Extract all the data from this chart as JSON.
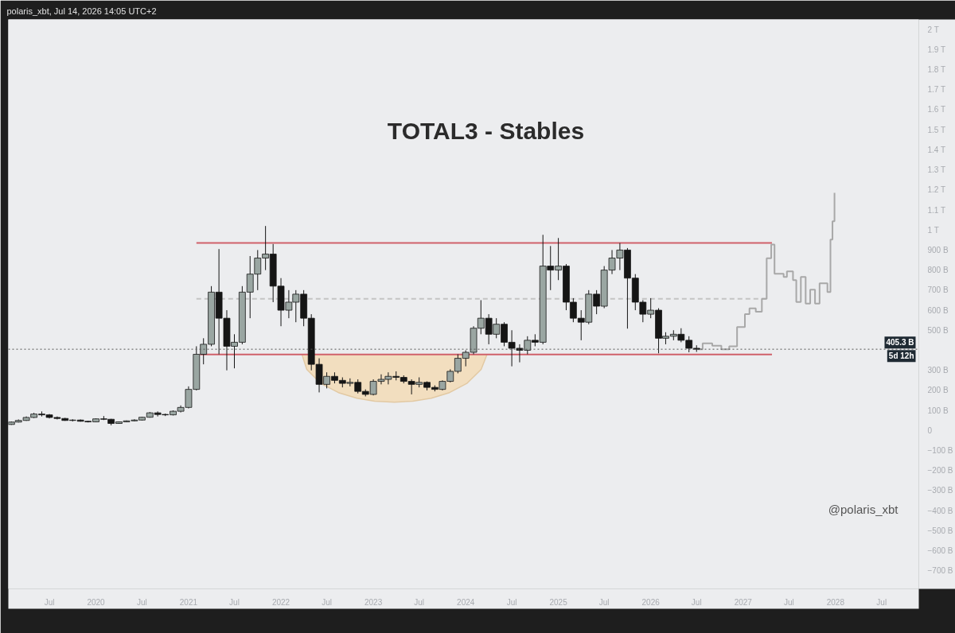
{
  "chart_data": {
    "type": "candlestick",
    "title": "TOTAL3 - Stables",
    "subtitle": "polaris_xbt, Jul 14, 2026 14:05 UTC+2",
    "annotations": [
      "@polaris_xbt",
      {
        "text": "5d 12h",
        "x": "2028-11-25",
        "y": 405300000000.0
      }
    ],
    "x": [
      "2019-02",
      "2019-03",
      "2019-04",
      "2019-05",
      "2019-06",
      "2019-07",
      "2019-08",
      "2019-09",
      "2019-10",
      "2019-11",
      "2019-12",
      "2020-01",
      "2020-02",
      "2020-03",
      "2020-04",
      "2020-05",
      "2020-06",
      "2020-07",
      "2020-08",
      "2020-09",
      "2020-10",
      "2020-11",
      "2020-12",
      "2021-01",
      "2021-02",
      "2021-03",
      "2021-04",
      "2021-05",
      "2021-06",
      "2021-07",
      "2021-08",
      "2021-09",
      "2021-10",
      "2021-11",
      "2021-12",
      "2022-01",
      "2022-02",
      "2022-03",
      "2022-04",
      "2022-05",
      "2022-06",
      "2022-07",
      "2022-08",
      "2022-09",
      "2022-10",
      "2022-11",
      "2022-12",
      "2023-01",
      "2023-02",
      "2023-03",
      "2023-04",
      "2023-05",
      "2023-06",
      "2023-07",
      "2023-08",
      "2023-09",
      "2023-10",
      "2023-11",
      "2023-12",
      "2024-01",
      "2024-02",
      "2024-03",
      "2024-04",
      "2024-05",
      "2024-06",
      "2024-07",
      "2024-08",
      "2024-09",
      "2024-10",
      "2024-11",
      "2024-12",
      "2025-01",
      "2025-02",
      "2025-03",
      "2025-04",
      "2025-05",
      "2025-06",
      "2025-07",
      "2025-08",
      "2025-09",
      "2025-10",
      "2025-11",
      "2025-12",
      "2026-01",
      "2026-02",
      "2026-03",
      "2026-04",
      "2026-05",
      "2026-06",
      "2026-07"
    ],
    "ohlc": [
      [
        30000000000.0,
        45000000000.0,
        28000000000.0,
        42000000000.0
      ],
      [
        42000000000.0,
        55000000000.0,
        40000000000.0,
        50000000000.0
      ],
      [
        50000000000.0,
        70000000000.0,
        48000000000.0,
        65000000000.0
      ],
      [
        65000000000.0,
        88000000000.0,
        62000000000.0,
        82000000000.0
      ],
      [
        82000000000.0,
        95000000000.0,
        70000000000.0,
        78000000000.0
      ],
      [
        78000000000.0,
        82000000000.0,
        60000000000.0,
        65000000000.0
      ],
      [
        65000000000.0,
        70000000000.0,
        55000000000.0,
        60000000000.0
      ],
      [
        60000000000.0,
        63000000000.0,
        48000000000.0,
        50000000000.0
      ],
      [
        50000000000.0,
        56000000000.0,
        45000000000.0,
        52000000000.0
      ],
      [
        52000000000.0,
        55000000000.0,
        44000000000.0,
        46000000000.0
      ],
      [
        46000000000.0,
        48000000000.0,
        40000000000.0,
        43000000000.0
      ],
      [
        43000000000.0,
        60000000000.0,
        42000000000.0,
        58000000000.0
      ],
      [
        58000000000.0,
        72000000000.0,
        52000000000.0,
        56000000000.0
      ],
      [
        56000000000.0,
        58000000000.0,
        26000000000.0,
        35000000000.0
      ],
      [
        35000000000.0,
        45000000000.0,
        33000000000.0,
        43000000000.0
      ],
      [
        43000000000.0,
        50000000000.0,
        41000000000.0,
        48000000000.0
      ],
      [
        48000000000.0,
        56000000000.0,
        46000000000.0,
        52000000000.0
      ],
      [
        52000000000.0,
        68000000000.0,
        50000000000.0,
        66000000000.0
      ],
      [
        66000000000.0,
        92000000000.0,
        64000000000.0,
        88000000000.0
      ],
      [
        88000000000.0,
        95000000000.0,
        70000000000.0,
        80000000000.0
      ],
      [
        80000000000.0,
        84000000000.0,
        72000000000.0,
        78000000000.0
      ],
      [
        78000000000.0,
        100000000000.0,
        75000000000.0,
        96000000000.0
      ],
      [
        96000000000.0,
        125000000000.0,
        90000000000.0,
        115000000000.0
      ],
      [
        115000000000.0,
        220000000000.0,
        110000000000.0,
        205000000000.0
      ],
      [
        205000000000.0,
        420000000000.0,
        200000000000.0,
        380000000000.0
      ],
      [
        380000000000.0,
        460000000000.0,
        330000000000.0,
        430000000000.0
      ],
      [
        430000000000.0,
        720000000000.0,
        420000000000.0,
        690000000000.0
      ],
      [
        690000000000.0,
        905000000000.0,
        380000000000.0,
        560000000000.0
      ],
      [
        560000000000.0,
        600000000000.0,
        300000000000.0,
        420000000000.0
      ],
      [
        420000000000.0,
        480000000000.0,
        310000000000.0,
        440000000000.0
      ],
      [
        440000000000.0,
        720000000000.0,
        430000000000.0,
        690000000000.0
      ],
      [
        690000000000.0,
        870000000000.0,
        560000000000.0,
        780000000000.0
      ],
      [
        780000000000.0,
        900000000000.0,
        700000000000.0,
        860000000000.0
      ],
      [
        860000000000.0,
        1020000000000.0,
        800000000000.0,
        880000000000.0
      ],
      [
        880000000000.0,
        930000000000.0,
        640000000000.0,
        720000000000.0
      ],
      [
        720000000000.0,
        760000000000.0,
        520000000000.0,
        600000000000.0
      ],
      [
        600000000000.0,
        700000000000.0,
        560000000000.0,
        640000000000.0
      ],
      [
        640000000000.0,
        700000000000.0,
        540000000000.0,
        680000000000.0
      ],
      [
        680000000000.0,
        700000000000.0,
        520000000000.0,
        560000000000.0
      ],
      [
        560000000000.0,
        580000000000.0,
        300000000000.0,
        330000000000.0
      ],
      [
        330000000000.0,
        360000000000.0,
        190000000000.0,
        230000000000.0
      ],
      [
        230000000000.0,
        290000000000.0,
        210000000000.0,
        270000000000.0
      ],
      [
        270000000000.0,
        290000000000.0,
        235000000000.0,
        250000000000.0
      ],
      [
        250000000000.0,
        265000000000.0,
        215000000000.0,
        235000000000.0
      ],
      [
        235000000000.0,
        260000000000.0,
        220000000000.0,
        240000000000.0
      ],
      [
        240000000000.0,
        255000000000.0,
        185000000000.0,
        195000000000.0
      ],
      [
        195000000000.0,
        205000000000.0,
        170000000000.0,
        180000000000.0
      ],
      [
        180000000000.0,
        255000000000.0,
        175000000000.0,
        245000000000.0
      ],
      [
        245000000000.0,
        280000000000.0,
        230000000000.0,
        255000000000.0
      ],
      [
        255000000000.0,
        290000000000.0,
        230000000000.0,
        270000000000.0
      ],
      [
        270000000000.0,
        295000000000.0,
        250000000000.0,
        265000000000.0
      ],
      [
        265000000000.0,
        275000000000.0,
        235000000000.0,
        245000000000.0
      ],
      [
        245000000000.0,
        255000000000.0,
        180000000000.0,
        230000000000.0
      ],
      [
        230000000000.0,
        265000000000.0,
        215000000000.0,
        240000000000.0
      ],
      [
        240000000000.0,
        245000000000.0,
        200000000000.0,
        215000000000.0
      ],
      [
        215000000000.0,
        225000000000.0,
        195000000000.0,
        205000000000.0
      ],
      [
        205000000000.0,
        250000000000.0,
        200000000000.0,
        245000000000.0
      ],
      [
        245000000000.0,
        305000000000.0,
        240000000000.0,
        295000000000.0
      ],
      [
        295000000000.0,
        380000000000.0,
        285000000000.0,
        360000000000.0
      ],
      [
        360000000000.0,
        400000000000.0,
        320000000000.0,
        390000000000.0
      ],
      [
        390000000000.0,
        520000000000.0,
        380000000000.0,
        510000000000.0
      ],
      [
        510000000000.0,
        650000000000.0,
        480000000000.0,
        560000000000.0
      ],
      [
        560000000000.0,
        580000000000.0,
        430000000000.0,
        480000000000.0
      ],
      [
        480000000000.0,
        560000000000.0,
        460000000000.0,
        530000000000.0
      ],
      [
        530000000000.0,
        540000000000.0,
        420000000000.0,
        440000000000.0
      ],
      [
        440000000000.0,
        500000000000.0,
        320000000000.0,
        410000000000.0
      ],
      [
        410000000000.0,
        430000000000.0,
        340000000000.0,
        400000000000.0
      ],
      [
        400000000000.0,
        470000000000.0,
        380000000000.0,
        450000000000.0
      ],
      [
        450000000000.0,
        480000000000.0,
        420000000000.0,
        440000000000.0
      ],
      [
        440000000000.0,
        976000000000.0,
        430000000000.0,
        820000000000.0
      ],
      [
        820000000000.0,
        920000000000.0,
        700000000000.0,
        800000000000.0
      ],
      [
        800000000000.0,
        960000000000.0,
        750000000000.0,
        820000000000.0
      ],
      [
        820000000000.0,
        830000000000.0,
        600000000000.0,
        640000000000.0
      ],
      [
        640000000000.0,
        660000000000.0,
        540000000000.0,
        560000000000.0
      ],
      [
        560000000000.0,
        600000000000.0,
        450000000000.0,
        540000000000.0
      ],
      [
        540000000000.0,
        700000000000.0,
        530000000000.0,
        680000000000.0
      ],
      [
        680000000000.0,
        700000000000.0,
        580000000000.0,
        620000000000.0
      ],
      [
        620000000000.0,
        820000000000.0,
        610000000000.0,
        800000000000.0
      ],
      [
        800000000000.0,
        900000000000.0,
        780000000000.0,
        860000000000.0
      ],
      [
        860000000000.0,
        935000000000.0,
        800000000000.0,
        900000000000.0
      ],
      [
        900000000000.0,
        910000000000.0,
        508000000000.0,
        760000000000.0
      ],
      [
        760000000000.0,
        780000000000.0,
        600000000000.0,
        640000000000.0
      ],
      [
        640000000000.0,
        650000000000.0,
        540000000000.0,
        580000000000.0
      ],
      [
        580000000000.0,
        660000000000.0,
        560000000000.0,
        600000000000.0
      ],
      [
        600000000000.0,
        610000000000.0,
        385000000000.0,
        460000000000.0
      ],
      [
        460000000000.0,
        490000000000.0,
        430000000000.0,
        470000000000.0
      ],
      [
        470000000000.0,
        500000000000.0,
        450000000000.0,
        480000000000.0
      ],
      [
        480000000000.0,
        510000000000.0,
        440000000000.0,
        450000000000.0
      ],
      [
        450000000000.0,
        470000000000.0,
        390000000000.0,
        410000000000.0
      ],
      [
        410000000000.0,
        425000000000.0,
        392000000000.0,
        405300000000.0
      ]
    ],
    "colors": [
      "#9aa6a2",
      "#9aa6a2",
      "#9aa6a2",
      "#9aa6a2",
      "#151515",
      "#151515",
      "#151515",
      "#151515",
      "#9aa6a2",
      "#151515",
      "#151515",
      "#9aa6a2",
      "#151515",
      "#151515",
      "#9aa6a2",
      "#9aa6a2",
      "#9aa6a2",
      "#9aa6a2",
      "#9aa6a2",
      "#151515",
      "#151515",
      "#9aa6a2",
      "#9aa6a2",
      "#9aa6a2",
      "#9aa6a2",
      "#9aa6a2",
      "#9aa6a2",
      "#151515",
      "#151515",
      "#9aa6a2",
      "#9aa6a2",
      "#9aa6a2",
      "#9aa6a2",
      "#9aa6a2",
      "#151515",
      "#151515",
      "#9aa6a2",
      "#9aa6a2",
      "#151515",
      "#151515",
      "#151515",
      "#9aa6a2",
      "#151515",
      "#151515",
      "#9aa6a2",
      "#151515",
      "#151515",
      "#9aa6a2",
      "#9aa6a2",
      "#9aa6a2",
      "#151515",
      "#151515",
      "#151515",
      "#9aa6a2",
      "#151515",
      "#151515",
      "#9aa6a2",
      "#9aa6a2",
      "#9aa6a2",
      "#9aa6a2",
      "#9aa6a2",
      "#9aa6a2",
      "#151515",
      "#9aa6a2",
      "#151515",
      "#151515",
      "#151515",
      "#9aa6a2",
      "#151515",
      "#9aa6a2",
      "#151515",
      "#9aa6a2",
      "#151515",
      "#151515",
      "#151515",
      "#9aa6a2",
      "#151515",
      "#9aa6a2",
      "#9aa6a2",
      "#9aa6a2",
      "#151515",
      "#151515",
      "#151515",
      "#9aa6a2",
      "#151515",
      "#9aa6a2",
      "#9aa6a2",
      "#151515",
      "#151515",
      "#151515"
    ],
    "series": [
      {
        "type": "area",
        "color": "#f3dcb9",
        "x": [
          "2022-03-25",
          "2022-04-13",
          "2022-06-06",
          "2022-08-16",
          "2022-10-28",
          "2023-01-06",
          "2023-03-25",
          "2023-06-06",
          "2023-08-18",
          "2023-10-29",
          "2024-01-07",
          "2024-03-02",
          "2024-03-25"
        ],
        "values": [
          379000000000.0,
          305000000000.0,
          236000000000.0,
          189000000000.0,
          161000000000.0,
          146000000000.0,
          141000000000.0,
          146000000000.0,
          161000000000.0,
          189000000000.0,
          236000000000.0,
          305000000000.0,
          379000000000.0
        ]
      },
      {
        "type": "line",
        "color": "#d0616a",
        "x": [
          "2021-02-01",
          "2027-04-25"
        ],
        "values": [
          935000000000.0,
          935000000000.0
        ]
      },
      {
        "type": "line",
        "color": "#d0616a",
        "x": [
          "2021-02-15",
          "2027-04-25"
        ],
        "values": [
          379000000000.0,
          379000000000.0
        ]
      },
      {
        "type": "line",
        "color": "#c4c4c4",
        "line_style": "dashed",
        "x": [
          "2021-02-01",
          "2027-04-01"
        ],
        "values": [
          657000000000.0,
          657000000000.0
        ]
      },
      {
        "type": "step",
        "color": "#a8a8a8",
        "x": [
          "2026-07-07",
          "2026-07-25",
          "2026-09-01",
          "2026-10-07",
          "2026-11-07",
          "2026-12-08",
          "2027-01-08",
          "2027-01-26",
          "2027-02-20",
          "2027-03-16",
          "2027-04-04",
          "2027-04-22",
          "2027-05-05",
          "2027-06-10",
          "2027-06-23",
          "2027-07-17",
          "2027-07-30",
          "2027-08-17",
          "2027-09-05",
          "2027-09-23",
          "2027-10-12",
          "2027-10-30",
          "2027-11-30",
          "2027-12-12",
          "2027-12-20",
          "2027-12-28"
        ],
        "values": [
          405000000000.0,
          435000000000.0,
          423000000000.0,
          405000000000.0,
          420000000000.0,
          516000000000.0,
          580000000000.0,
          609000000000.0,
          592000000000.0,
          657000000000.0,
          859000000000.0,
          927000000000.0,
          782000000000.0,
          766000000000.0,
          794000000000.0,
          750000000000.0,
          641000000000.0,
          766000000000.0,
          633000000000.0,
          702000000000.0,
          633000000000.0,
          734000000000.0,
          690000000000.0,
          952000000000.0,
          1044000000000.0,
          1185000000000.0
        ]
      }
    ],
    "ref_lines": [
      {
        "axis": "y",
        "value": 405300000000.0,
        "label": "405.3 B",
        "color": "#555555",
        "line_style": "dotted"
      }
    ],
    "xlim": [
      "2019-01-20",
      "2028-11-25"
    ],
    "xticks": [
      {
        "value": "2019-07",
        "label": "Jul"
      },
      {
        "value": "2020",
        "label": "2020"
      },
      {
        "value": "2020-07",
        "label": "Jul"
      },
      {
        "value": "2021",
        "label": "2021"
      },
      {
        "value": "2021-07",
        "label": "Jul"
      },
      {
        "value": "2022",
        "label": "2022"
      },
      {
        "value": "2022-07",
        "label": "Jul"
      },
      {
        "value": "2023",
        "label": "2023"
      },
      {
        "value": "2023-07",
        "label": "Jul"
      },
      {
        "value": "2024",
        "label": "2024"
      },
      {
        "value": "2024-07",
        "label": "Jul"
      },
      {
        "value": "2025",
        "label": "2025"
      },
      {
        "value": "2025-07",
        "label": "Jul"
      },
      {
        "value": "2026",
        "label": "2026"
      },
      {
        "value": "2026-07",
        "label": "Jul"
      },
      {
        "value": "2027",
        "label": "2027"
      },
      {
        "value": "2027-07",
        "label": "Jul"
      },
      {
        "value": "2028",
        "label": "2028"
      },
      {
        "value": "2028-07",
        "label": "Jul"
      }
    ],
    "ylim": [
      -790000000000.0,
      2050000000000.0
    ],
    "yticks": [
      {
        "value": -700000000000.0,
        "label": "−700 B"
      },
      {
        "value": -600000000000.0,
        "label": "−600 B"
      },
      {
        "value": -500000000000.0,
        "label": "−500 B"
      },
      {
        "value": -400000000000.0,
        "label": "−400 B"
      },
      {
        "value": -300000000000.0,
        "label": "−300 B"
      },
      {
        "value": -200000000000.0,
        "label": "−200 B"
      },
      {
        "value": -100000000000.0,
        "label": "−100 B"
      },
      0,
      {
        "value": 100000000000.0,
        "label": "100 B"
      },
      {
        "value": 200000000000.0,
        "label": "200 B"
      },
      {
        "value": 300000000000.0,
        "label": "300 B"
      },
      {
        "value": 500000000000.0,
        "label": "500 B"
      },
      {
        "value": 600000000000.0,
        "label": "600 B"
      },
      {
        "value": 700000000000.0,
        "label": "700 B"
      },
      {
        "value": 800000000000.0,
        "label": "800 B"
      },
      {
        "value": 900000000000.0,
        "label": "900 B"
      },
      {
        "value": 1000000000000.0,
        "label": "1 T"
      },
      {
        "value": 1100000000000.0,
        "label": "1.1 T"
      },
      {
        "value": 1200000000000.0,
        "label": "1.2 T"
      },
      {
        "value": 1300000000000.0,
        "label": "1.3 T"
      },
      {
        "value": 1400000000000.0,
        "label": "1.4 T"
      },
      {
        "value": 1500000000000.0,
        "label": "1.5 T"
      },
      {
        "value": 1600000000000.0,
        "label": "1.6 T"
      },
      {
        "value": 1700000000000.0,
        "label": "1.7 T"
      },
      {
        "value": 1800000000000.0,
        "label": "1.8 T"
      },
      {
        "value": 1900000000000.0,
        "label": "1.9 T"
      },
      {
        "value": 2000000000000.0,
        "label": "2 T"
      }
    ],
    "grid": false
  }
}
